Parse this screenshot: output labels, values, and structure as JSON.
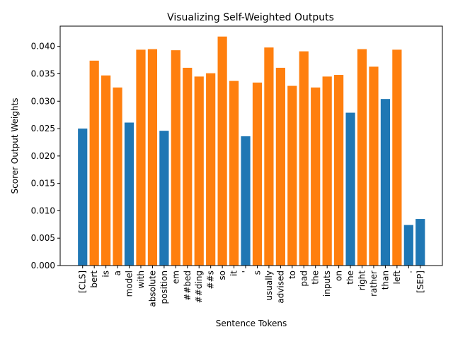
{
  "chart_data": {
    "type": "bar",
    "title": "Visualizing Self-Weighted Outputs",
    "xlabel": "Sentence Tokens",
    "ylabel": "Scorer Output Weights",
    "ylim": [
      0,
      0.0437
    ],
    "yticks": [
      "0.000",
      "0.005",
      "0.010",
      "0.015",
      "0.020",
      "0.025",
      "0.030",
      "0.035",
      "0.040"
    ],
    "ytick_values": [
      0,
      0.005,
      0.01,
      0.015,
      0.02,
      0.025,
      0.03,
      0.035,
      0.04
    ],
    "grid": false,
    "legend": "none",
    "colors": {
      "blue": "#1f77b4",
      "orange": "#ff7f0e"
    },
    "categories": [
      "[CLS]",
      "bert",
      "is",
      "a",
      "model",
      "with",
      "absolute",
      "position",
      "em",
      "##bed",
      "##ding",
      "##s",
      "so",
      "it",
      "'",
      "s",
      "usually",
      "advised",
      "to",
      "pad",
      "the",
      "inputs",
      "on",
      "the",
      "right",
      "rather",
      "than",
      "left",
      ".",
      "[SEP]"
    ],
    "values": [
      0.025,
      0.0374,
      0.0347,
      0.0325,
      0.0261,
      0.0394,
      0.0395,
      0.0246,
      0.0393,
      0.0361,
      0.0345,
      0.0351,
      0.0418,
      0.0337,
      0.0236,
      0.0334,
      0.0398,
      0.0361,
      0.0328,
      0.0391,
      0.0325,
      0.0345,
      0.0348,
      0.0279,
      0.0395,
      0.0363,
      0.0304,
      0.0394,
      0.0074,
      0.0085
    ],
    "bar_colors": [
      "blue",
      "orange",
      "orange",
      "orange",
      "blue",
      "orange",
      "orange",
      "blue",
      "orange",
      "orange",
      "orange",
      "orange",
      "orange",
      "orange",
      "blue",
      "orange",
      "orange",
      "orange",
      "orange",
      "orange",
      "orange",
      "orange",
      "orange",
      "blue",
      "orange",
      "orange",
      "blue",
      "orange",
      "blue",
      "blue"
    ]
  }
}
